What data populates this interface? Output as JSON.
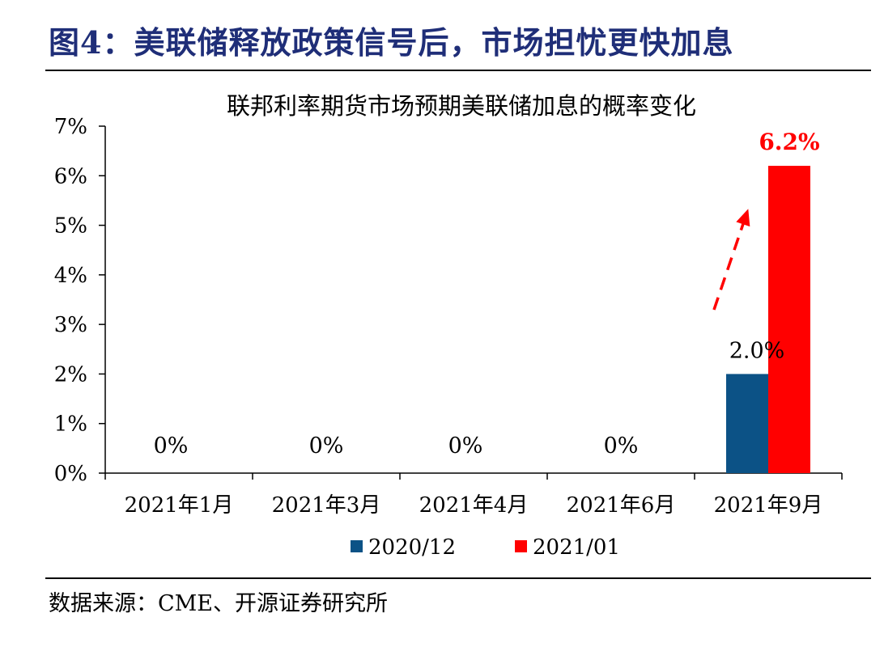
{
  "figure": {
    "title": "图4：美联储释放政策信号后，市场担忧更快加息",
    "source": "数据来源：CME、开源证券研究所"
  },
  "colors": {
    "title": "#1f2e78",
    "series_2020_12": "#0c5286",
    "series_2021_01": "#ff0000",
    "arrow": "#ff0000"
  },
  "chart_data": {
    "type": "bar",
    "title": "联邦利率期货市场预期美联储加息的概率变化",
    "categories": [
      "2021年1月",
      "2021年3月",
      "2021年4月",
      "2021年6月",
      "2021年9月"
    ],
    "series": [
      {
        "name": "2020/12",
        "values": [
          0,
          0,
          0,
          0,
          2.0
        ],
        "color": "#0c5286"
      },
      {
        "name": "2021/01",
        "values": [
          0,
          0,
          0,
          0,
          6.2
        ],
        "color": "#ff0000"
      }
    ],
    "value_labels": [
      "0%",
      "0%",
      "0%",
      "0%",
      "2.0%",
      "6.2%"
    ],
    "yticks": [
      "0%",
      "1%",
      "2%",
      "3%",
      "4%",
      "5%",
      "6%",
      "7%"
    ],
    "ylim": [
      0,
      7
    ],
    "grid": false,
    "legend_position": "bottom",
    "annotation": "dashed-red-arrow-up"
  }
}
